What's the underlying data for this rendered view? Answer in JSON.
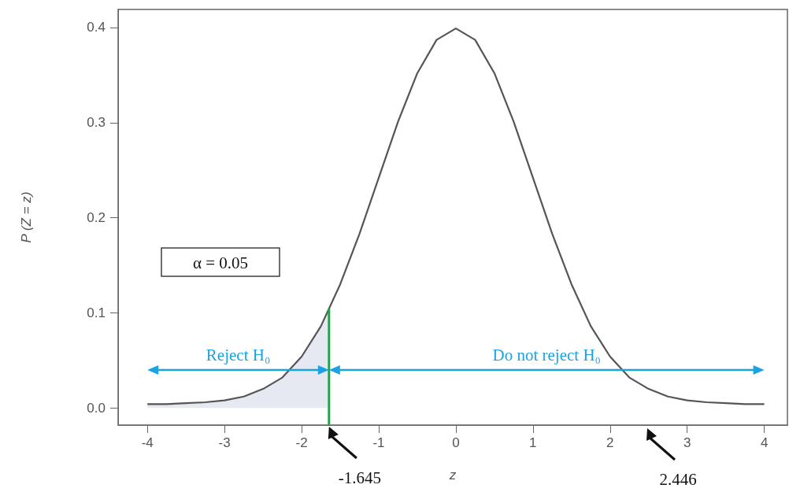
{
  "chart_data": {
    "type": "line",
    "xlabel": "z",
    "ylabel": "P (Z = z)",
    "xlim": [
      -4.38,
      4.3
    ],
    "xticks": [
      -4,
      -3,
      -2,
      -1,
      0,
      1,
      2,
      3,
      4
    ],
    "ylim": [
      -0.018,
      0.419
    ],
    "yticks": [
      {
        "value": 0,
        "label": "0.0"
      },
      0.1,
      0.2,
      0.3,
      0.4
    ],
    "grid": false,
    "marker": "none",
    "line_style": "solid",
    "series": [
      {
        "type": "area",
        "color": "#e6e9f2",
        "x": [
          -4,
          -3.75,
          -3.5,
          -3.25,
          -3,
          -2.75,
          -2.5,
          -2.25,
          -2,
          -1.75,
          -1.645
        ],
        "values": [
          0.004,
          0.004,
          0.005,
          0.006,
          0.008,
          0.012,
          0.02,
          0.032,
          0.054,
          0.086,
          0.103
        ]
      },
      {
        "color": "#555555",
        "x": [
          -4,
          -3.75,
          -3.5,
          -3.25,
          -3,
          -2.75,
          -2.5,
          -2.25,
          -2,
          -1.75,
          -1.5,
          -1.25,
          -1,
          -0.75,
          -0.5,
          -0.25,
          0,
          0.25,
          0.5,
          0.75,
          1,
          1.25,
          1.5,
          1.75,
          2,
          2.25,
          2.5,
          2.75,
          3,
          3.25,
          3.5,
          3.75,
          4
        ],
        "values": [
          0.004,
          0.004,
          0.005,
          0.006,
          0.008,
          0.012,
          0.02,
          0.032,
          0.054,
          0.086,
          0.13,
          0.183,
          0.242,
          0.301,
          0.352,
          0.387,
          0.399,
          0.387,
          0.352,
          0.301,
          0.242,
          0.183,
          0.13,
          0.086,
          0.054,
          0.032,
          0.02,
          0.012,
          0.008,
          0.006,
          0.005,
          0.004,
          0.004
        ]
      }
    ],
    "ref_lines": [
      {
        "axis": "x",
        "value": -1.645,
        "color": "#22a04a"
      }
    ],
    "annotations": [
      "α = 0.05",
      "Reject H₀",
      "Do not reject H₀",
      {
        "text": "-1.645",
        "x": -1.645,
        "y": -0.018
      },
      "2.446"
    ]
  }
}
